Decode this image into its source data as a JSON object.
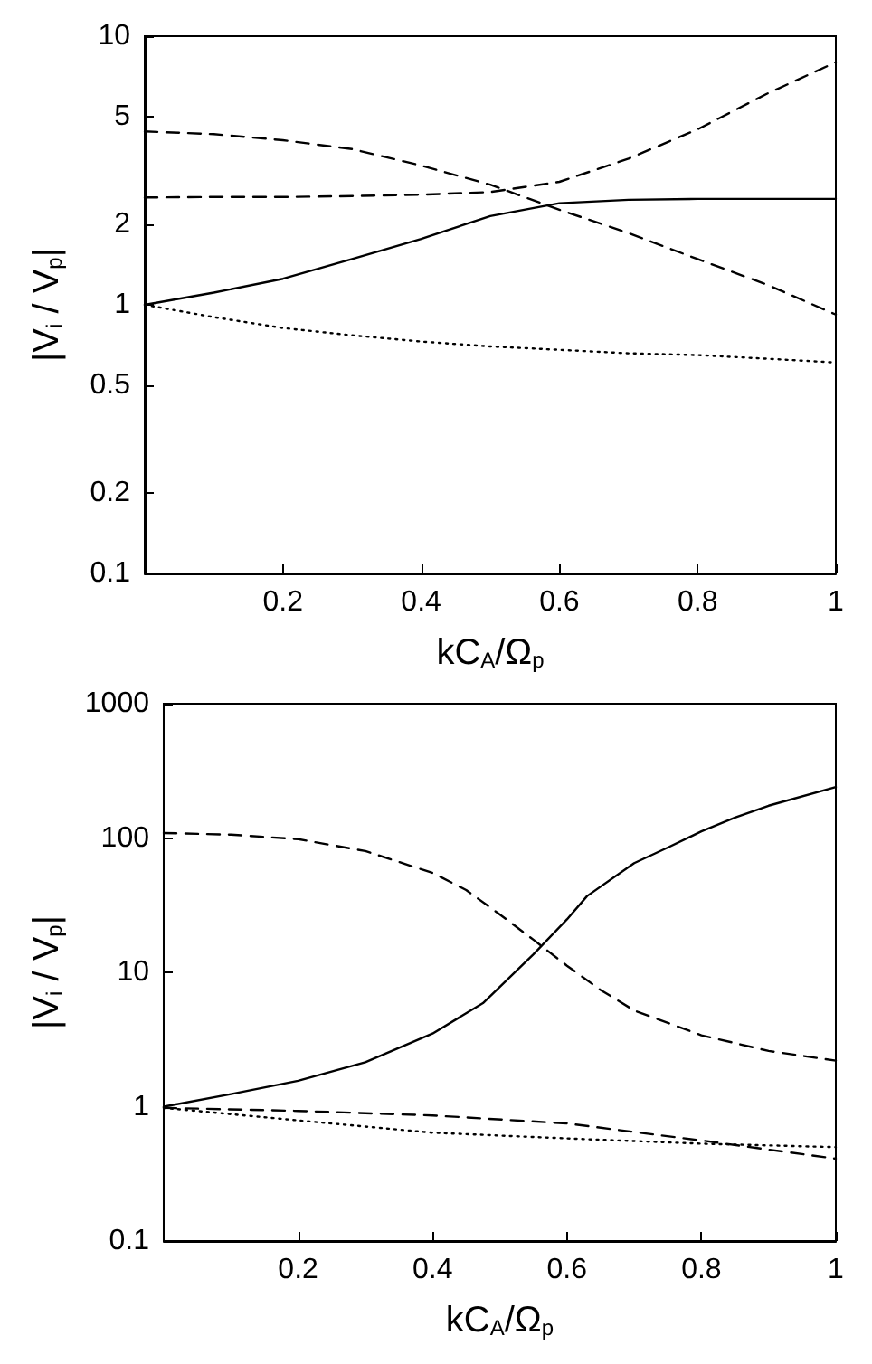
{
  "chart_data": [
    {
      "type": "line",
      "xlabel": "kC$_{A}$/Ω$_{p}$",
      "ylabel": "|V$_{i}$ / V$_{p}$|",
      "log": "y",
      "xlim": [
        0,
        1
      ],
      "xticks": [
        0.2,
        0.4,
        0.6,
        0.8,
        1
      ],
      "ylim": [
        0.1,
        10
      ],
      "yticks": [
        0.1,
        0.2,
        0.5,
        1,
        2,
        5,
        10
      ],
      "series": [
        {
          "color": "#000000",
          "line_style": "solid",
          "x": [
            0,
            0.1,
            0.2,
            0.3,
            0.4,
            0.5,
            0.6,
            0.7,
            0.8,
            0.9,
            1
          ],
          "values": [
            1,
            1.11,
            1.25,
            1.48,
            1.76,
            2.14,
            2.39,
            2.46,
            2.48,
            2.48,
            2.48
          ]
        },
        {
          "color": "#000000",
          "line_style": "dashed",
          "x": [
            0,
            0.1,
            0.2,
            0.3,
            0.4,
            0.5,
            0.6,
            0.7,
            0.8,
            0.9,
            1
          ],
          "values": [
            4.42,
            4.32,
            4.1,
            3.8,
            3.3,
            2.8,
            2.26,
            1.85,
            1.48,
            1.19,
            0.92
          ]
        },
        {
          "color": "#000000",
          "line_style": "dashed",
          "x": [
            0,
            0.1,
            0.2,
            0.3,
            0.4,
            0.5,
            0.6,
            0.7,
            0.8,
            0.9,
            1
          ],
          "values": [
            2.51,
            2.52,
            2.52,
            2.54,
            2.57,
            2.63,
            2.87,
            3.5,
            4.5,
            6.1,
            8.0
          ]
        },
        {
          "color": "#000000",
          "line_style": "dotted",
          "x": [
            0,
            0.1,
            0.2,
            0.3,
            0.4,
            0.5,
            0.6,
            0.7,
            0.8,
            0.9,
            1
          ],
          "values": [
            1,
            0.9,
            0.82,
            0.77,
            0.73,
            0.7,
            0.68,
            0.66,
            0.65,
            0.63,
            0.61
          ]
        }
      ]
    },
    {
      "type": "line",
      "xlabel": "kC$_{A}$/Ω$_{p}$",
      "ylabel": "|V$_{i}$ / V$_{p}$|",
      "log": "y",
      "xlim": [
        0,
        1
      ],
      "xticks": [
        0.2,
        0.4,
        0.6,
        0.8,
        1
      ],
      "ylim": [
        0.1,
        1000
      ],
      "yticks": [
        0.1,
        1,
        10,
        100,
        1000
      ],
      "series": [
        {
          "color": "#000000",
          "line_style": "solid",
          "x": [
            0,
            0.1,
            0.2,
            0.3,
            0.4,
            0.475,
            0.55,
            0.6,
            0.63,
            0.7,
            0.75,
            0.8,
            0.85,
            0.9,
            1
          ],
          "values": [
            1,
            1.24,
            1.56,
            2.14,
            3.5,
            5.9,
            13.6,
            24.8,
            37,
            65,
            85,
            112,
            142,
            174,
            240
          ]
        },
        {
          "color": "#000000",
          "line_style": "dashed",
          "x": [
            0,
            0.1,
            0.2,
            0.3,
            0.4,
            0.45,
            0.5,
            0.55,
            0.6,
            0.65,
            0.7,
            0.8,
            0.9,
            1
          ],
          "values": [
            109,
            106,
            98,
            80,
            55,
            41,
            27,
            17.5,
            11.2,
            7.4,
            5.2,
            3.4,
            2.6,
            2.2
          ]
        },
        {
          "color": "#000000",
          "line_style": "dashed",
          "x": [
            0,
            0.2,
            0.4,
            0.6,
            0.8,
            1
          ],
          "values": [
            0.98,
            0.93,
            0.86,
            0.75,
            0.56,
            0.41
          ]
        },
        {
          "color": "#000000",
          "line_style": "dotted",
          "x": [
            0,
            0.2,
            0.4,
            0.6,
            0.8,
            1
          ],
          "values": [
            0.98,
            0.79,
            0.64,
            0.58,
            0.53,
            0.5
          ]
        }
      ]
    }
  ]
}
